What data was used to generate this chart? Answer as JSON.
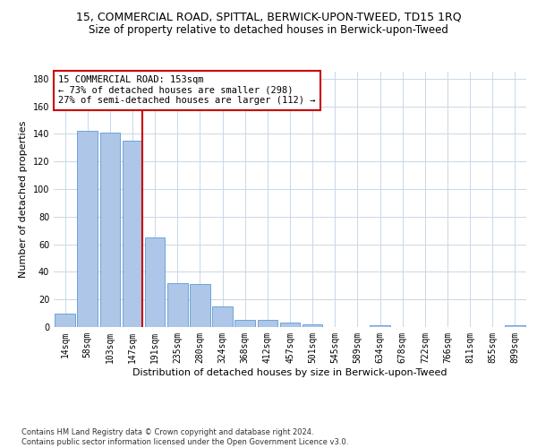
{
  "title": "15, COMMERCIAL ROAD, SPITTAL, BERWICK-UPON-TWEED, TD15 1RQ",
  "subtitle": "Size of property relative to detached houses in Berwick-upon-Tweed",
  "xlabel": "Distribution of detached houses by size in Berwick-upon-Tweed",
  "ylabel": "Number of detached properties",
  "categories": [
    "14sqm",
    "58sqm",
    "103sqm",
    "147sqm",
    "191sqm",
    "235sqm",
    "280sqm",
    "324sqm",
    "368sqm",
    "412sqm",
    "457sqm",
    "501sqm",
    "545sqm",
    "589sqm",
    "634sqm",
    "678sqm",
    "722sqm",
    "766sqm",
    "811sqm",
    "855sqm",
    "899sqm"
  ],
  "values": [
    10,
    142,
    141,
    135,
    65,
    32,
    31,
    15,
    5,
    5,
    3,
    2,
    0,
    0,
    1,
    0,
    0,
    0,
    0,
    0,
    1
  ],
  "bar_color": "#aec6e8",
  "bar_edge_color": "#5b9bd5",
  "vline_color": "#cc0000",
  "annotation_text": "15 COMMERCIAL ROAD: 153sqm\n← 73% of detached houses are smaller (298)\n27% of semi-detached houses are larger (112) →",
  "annotation_box_color": "#ffffff",
  "annotation_box_edge": "#cc0000",
  "ylim": [
    0,
    185
  ],
  "yticks": [
    0,
    20,
    40,
    60,
    80,
    100,
    120,
    140,
    160,
    180
  ],
  "background_color": "#ffffff",
  "grid_color": "#c8d8e8",
  "footer": "Contains HM Land Registry data © Crown copyright and database right 2024.\nContains public sector information licensed under the Open Government Licence v3.0.",
  "title_fontsize": 9,
  "subtitle_fontsize": 8.5,
  "xlabel_fontsize": 8,
  "ylabel_fontsize": 8,
  "tick_fontsize": 7,
  "annotation_fontsize": 7.5,
  "footer_fontsize": 6
}
